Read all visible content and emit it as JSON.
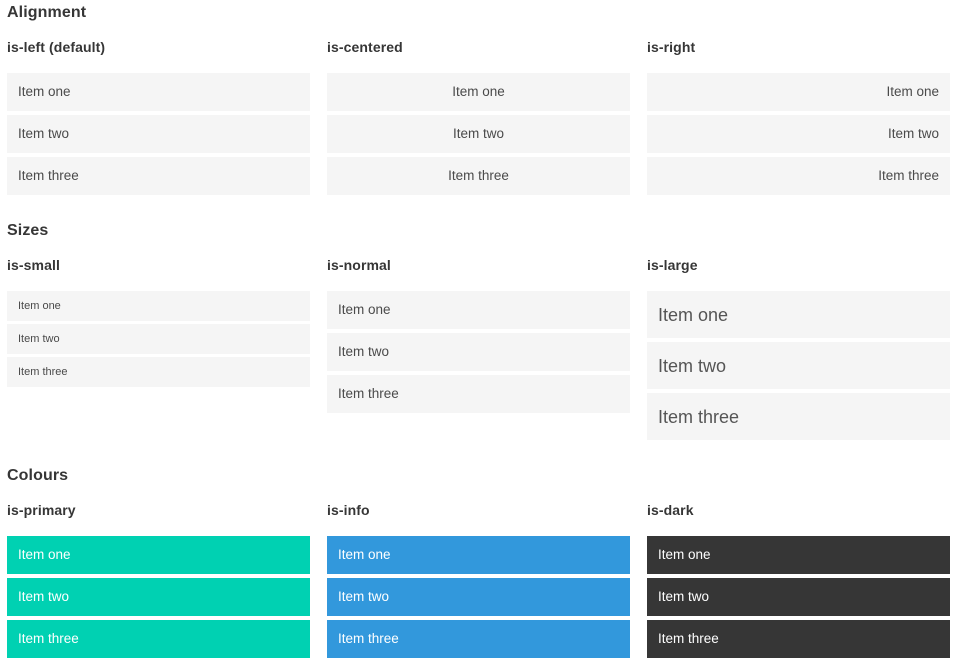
{
  "colors": {
    "primary": "#00d1b2",
    "info": "#3298dc",
    "dark": "#363636",
    "item_background": "#f5f5f5",
    "item_text": "#4a4a4a",
    "heading_text": "#363636",
    "coloured_item_text": "#ffffff"
  },
  "sections": [
    {
      "title": "Alignment",
      "columns": [
        {
          "heading": "is-left (default)",
          "items": [
            "Item one",
            "Item two",
            "Item three"
          ]
        },
        {
          "heading": "is-centered",
          "items": [
            "Item one",
            "Item two",
            "Item three"
          ]
        },
        {
          "heading": "is-right",
          "items": [
            "Item one",
            "Item two",
            "Item three"
          ]
        }
      ]
    },
    {
      "title": "Sizes",
      "columns": [
        {
          "heading": "is-small",
          "items": [
            "Item one",
            "Item two",
            "Item three"
          ]
        },
        {
          "heading": "is-normal",
          "items": [
            "Item one",
            "Item two",
            "Item three"
          ]
        },
        {
          "heading": "is-large",
          "items": [
            "Item one",
            "Item two",
            "Item three"
          ]
        }
      ]
    },
    {
      "title": "Colours",
      "columns": [
        {
          "heading": "is-primary",
          "items": [
            "Item one",
            "Item two",
            "Item three"
          ]
        },
        {
          "heading": "is-info",
          "items": [
            "Item one",
            "Item two",
            "Item three"
          ]
        },
        {
          "heading": "is-dark",
          "items": [
            "Item one",
            "Item two",
            "Item three"
          ]
        }
      ]
    }
  ]
}
